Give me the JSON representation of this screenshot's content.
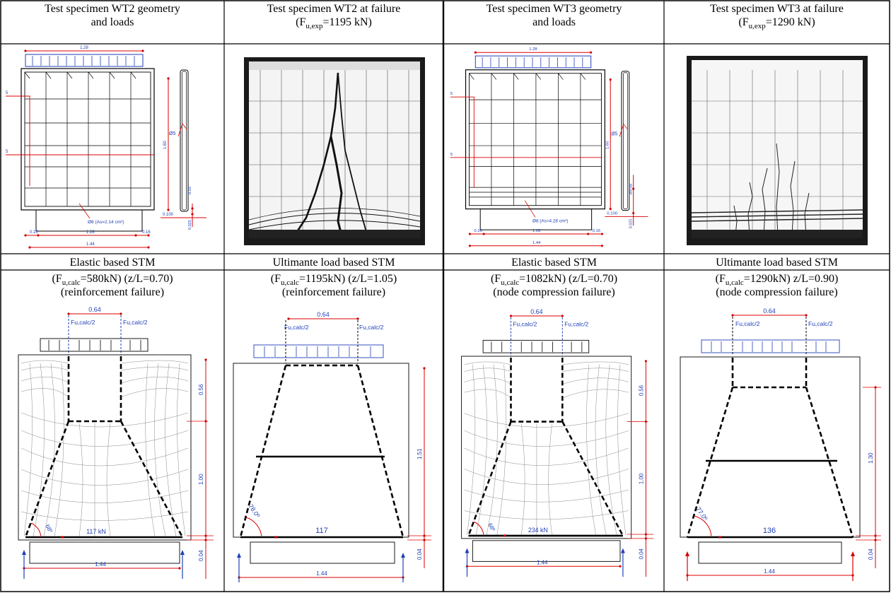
{
  "panels": [
    {
      "title_line1": "Test specimen WT2 geometry",
      "title_line2": "and loads",
      "dims": {
        "top": "1.28",
        "height": "1.60",
        "bottom_total": "1.44",
        "bottom_mid": "1.28",
        "bottom_left": "0.16",
        "bottom_right": "0.16",
        "side_a": "0.100",
        "side_b": "0.025",
        "side_c": "0.03",
        "bar_label": "Ø5",
        "callout": "5",
        "callout2": "5",
        "rebar": "Ø8 (As=2.14 cm²)"
      }
    },
    {
      "title_line1": "Test specimen WT2 at failure",
      "title_line2_pre": "(F",
      "title_line2_sub": "u,exp",
      "title_line2_post": "=1195 kN)"
    },
    {
      "title_line1": "Test specimen WT3 geometry",
      "title_line2": "and loads",
      "dims": {
        "top": "1.28",
        "height": "1.60",
        "bottom_total": "1.44",
        "bottom_mid": "1.28",
        "bottom_left": "0.16",
        "bottom_right": "0.16",
        "side_a": "0.100",
        "side_b": "0.025",
        "side_c": "3x0.06",
        "bar_label": "Ø5",
        "callout": "5",
        "callout2": "5",
        "rebar": "Ø8 (As=4.28 cm²)"
      }
    },
    {
      "title_line1": "Test specimen WT3 at failure",
      "title_line2_pre": "(F",
      "title_line2_sub": "u,exp",
      "title_line2_post": "=1290 kN)"
    }
  ],
  "stm": [
    {
      "title": "Elastic based STM",
      "line2_pre": "(F",
      "line2_sub": "u,calc",
      "line2_post": "=580kN) (z/L=0.70)",
      "line3": "(reinforcement failure)",
      "top": "0.64",
      "load_l": "Fu,calc/2",
      "load_r": "Fu,calc/2",
      "d1": "0.56",
      "d2": "1.00",
      "d3": "0.04",
      "bottom": "1.44",
      "angle": "68º",
      "tie": "117 kN"
    },
    {
      "title": "Ultimante load based STM",
      "line2_pre": "(F",
      "line2_sub": "u,calc",
      "line2_post": "=1195kN) (z/L=1.05)",
      "line3": "(reinforcement failure)",
      "top": "0.64",
      "load_l": "Fu,calc/2",
      "load_r": "Fu,calc/2",
      "d1": "1.51",
      "d3": "0.04",
      "bottom": "1.44",
      "angle": "78.0º",
      "tie": "117"
    },
    {
      "title": "Elastic based STM",
      "line2_pre": "(F",
      "line2_sub": "u,calc",
      "line2_post": "=1082kN) (z/L=0.70)",
      "line3": "(node compression failure)",
      "top": "0.64",
      "load_l": "Fu,calc/2",
      "load_r": "Fu,calc/2",
      "d1": "0.56",
      "d2": "1.00",
      "d3": "0.04",
      "bottom": "1.44",
      "angle": "68º",
      "tie": "234 kN"
    },
    {
      "title": "Ultimante load based STM",
      "line2_pre": "(F",
      "line2_sub": "u,calc",
      "line2_post": "=1290kN) z/L=0.90)",
      "line3": "(node compression failure)",
      "top": "0.64",
      "load_l": "Fu,calc/2",
      "load_r": "Fu,calc/2",
      "d1": "1.30",
      "d3": "0.04",
      "bottom": "1.44",
      "angle": "77.0º",
      "tie": "136"
    }
  ]
}
